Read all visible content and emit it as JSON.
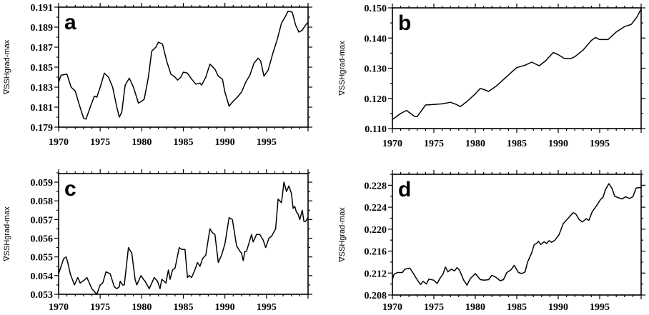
{
  "chart_data": [
    {
      "type": "line",
      "panel_label": "a",
      "ylabel": "∇SSHgrad-max",
      "xlim": [
        1970,
        2000
      ],
      "ylim": [
        0.179,
        0.191
      ],
      "xticks": [
        "1970",
        "1975",
        "1980",
        "1985",
        "1990",
        "1995"
      ],
      "xtick_values": [
        1970,
        1975,
        1980,
        1985,
        1990,
        1995
      ],
      "yticks": [
        "0.179",
        "0.181",
        "0.183",
        "0.185",
        "0.187",
        "0.189",
        "0.191"
      ],
      "ytick_values": [
        0.179,
        0.181,
        0.183,
        0.185,
        0.187,
        0.189,
        0.191
      ],
      "yminor_step": 0.001,
      "grid": false,
      "series": [
        {
          "name": "a",
          "x": [
            1970,
            1970.3,
            1971,
            1971.5,
            1972,
            1972.5,
            1973,
            1973.3,
            1973.8,
            1974.3,
            1974.6,
            1975,
            1975.5,
            1976,
            1976.5,
            1977,
            1977.3,
            1977.6,
            1978,
            1978.5,
            1979,
            1979.6,
            1980,
            1980.3,
            1980.8,
            1981.2,
            1981.7,
            1982,
            1982.5,
            1983,
            1983.5,
            1984,
            1984.3,
            1984.7,
            1985,
            1985.5,
            1986,
            1986.5,
            1987,
            1987.2,
            1987.7,
            1988.2,
            1988.8,
            1989.2,
            1989.7,
            1990,
            1990.5,
            1991,
            1991.5,
            1992,
            1992.5,
            1993,
            1993.5,
            1994,
            1994.3,
            1994.7,
            1995.2,
            1995.7,
            1996.3,
            1996.8,
            1997.3,
            1997.6,
            1998.1,
            1998.5,
            1998.9,
            1999.3,
            1999.7,
            2000
          ],
          "y": [
            0.1835,
            0.1842,
            0.1843,
            0.183,
            0.1826,
            0.1812,
            0.1799,
            0.1798,
            0.181,
            0.1821,
            0.182,
            0.183,
            0.1844,
            0.184,
            0.183,
            0.181,
            0.18,
            0.1805,
            0.1832,
            0.1839,
            0.183,
            0.1814,
            0.1816,
            0.1818,
            0.184,
            0.1866,
            0.187,
            0.1875,
            0.1873,
            0.1856,
            0.1843,
            0.184,
            0.1837,
            0.184,
            0.1845,
            0.1844,
            0.1838,
            0.1833,
            0.1834,
            0.1832,
            0.184,
            0.1853,
            0.1848,
            0.1841,
            0.1838,
            0.1825,
            0.1811,
            0.1816,
            0.182,
            0.1825,
            0.1835,
            0.1842,
            0.1854,
            0.1859,
            0.1856,
            0.1841,
            0.1847,
            0.1862,
            0.1878,
            0.1894,
            0.1901,
            0.1906,
            0.1905,
            0.1892,
            0.1885,
            0.1887,
            0.1892,
            0.1895
          ]
        }
      ]
    },
    {
      "type": "line",
      "panel_label": "b",
      "ylabel": "∇SSHgrad-max",
      "xlim": [
        1970,
        2000
      ],
      "ylim": [
        0.11,
        0.15
      ],
      "xticks": [
        "1970",
        "1975",
        "1980",
        "1985",
        "1990",
        "1995"
      ],
      "xtick_values": [
        1970,
        1975,
        1980,
        1985,
        1990,
        1995
      ],
      "yticks": [
        "0.110",
        "0.120",
        "0.130",
        "0.140",
        "0.150"
      ],
      "ytick_values": [
        0.11,
        0.12,
        0.13,
        0.14,
        0.15
      ],
      "yminor_step": 0.005,
      "grid": false,
      "series": [
        {
          "name": "b",
          "x": [
            1970,
            1971,
            1971.7,
            1972.7,
            1973,
            1974,
            1975,
            1976,
            1977,
            1977.7,
            1978.2,
            1979,
            1980,
            1980.6,
            1981,
            1981.6,
            1982.5,
            1983.5,
            1984.5,
            1985,
            1986,
            1986.8,
            1987.7,
            1988.5,
            1989.4,
            1990,
            1990.7,
            1991.5,
            1992,
            1993,
            1994,
            1994.5,
            1995,
            1996,
            1997,
            1998,
            1998.8,
            1999.5,
            2000
          ],
          "y": [
            0.113,
            0.115,
            0.116,
            0.114,
            0.114,
            0.1178,
            0.118,
            0.1182,
            0.1187,
            0.118,
            0.1173,
            0.119,
            0.1215,
            0.1233,
            0.123,
            0.1223,
            0.124,
            0.1265,
            0.129,
            0.1302,
            0.131,
            0.132,
            0.1308,
            0.1325,
            0.1352,
            0.1345,
            0.1333,
            0.1332,
            0.1338,
            0.136,
            0.1392,
            0.1402,
            0.1395,
            0.1395,
            0.142,
            0.1438,
            0.1445,
            0.147,
            0.1497
          ]
        }
      ]
    },
    {
      "type": "line",
      "panel_label": "c",
      "ylabel": "∇SSHgrad-max",
      "xlim": [
        1970,
        2000
      ],
      "ylim": [
        0.053,
        0.05946
      ],
      "xticks": [
        "1970",
        "1975",
        "1980",
        "1985",
        "1990",
        "1995"
      ],
      "xtick_values": [
        1970,
        1975,
        1980,
        1985,
        1990,
        1995
      ],
      "yticks": [
        "0.053",
        "0.054",
        "0.055",
        "0.056",
        "0.057",
        "0.058",
        "0.059"
      ],
      "ytick_values": [
        0.053,
        0.054,
        0.055,
        0.056,
        0.057,
        0.058,
        0.059
      ],
      "yminor_step": 0.0005,
      "grid": false,
      "series": [
        {
          "name": "c",
          "x": [
            1970,
            1970.6,
            1970.9,
            1971.1,
            1971.4,
            1971.9,
            1972.3,
            1972.6,
            1972.9,
            1973.2,
            1973.4,
            1974,
            1974.6,
            1975,
            1975.3,
            1975.7,
            1976.2,
            1976.7,
            1977,
            1977.3,
            1977.4,
            1977.7,
            1977.9,
            1978.4,
            1978.8,
            1979.2,
            1979.4,
            1979.9,
            1980.2,
            1980.4,
            1980.9,
            1981.3,
            1981.5,
            1981.9,
            1982.2,
            1982.4,
            1982.7,
            1982.9,
            1983.2,
            1983.4,
            1983.7,
            1984,
            1984.5,
            1984.8,
            1985.2,
            1985.5,
            1985.7,
            1986,
            1986.3,
            1986.7,
            1987,
            1987.3,
            1987.7,
            1988.2,
            1988.5,
            1988.8,
            1989.2,
            1989.6,
            1990,
            1990.5,
            1990.9,
            1991.4,
            1991.8,
            1992,
            1992.2,
            1992.4,
            1992.6,
            1993.2,
            1993.4,
            1993.8,
            1994.2,
            1994.6,
            1994.9,
            1995.3,
            1995.6,
            1996.1,
            1996.4,
            1996.8,
            1997.1,
            1997.4,
            1997.7,
            1998,
            1998.2,
            1998.4,
            1998.6,
            1998.8,
            1999,
            1999.3,
            1999.5,
            1999.7,
            2000
          ],
          "y": [
            0.0541,
            0.0549,
            0.055,
            0.0547,
            0.0541,
            0.0535,
            0.0539,
            0.0536,
            0.0537,
            0.0538,
            0.0539,
            0.0533,
            0.053,
            0.0535,
            0.0536,
            0.0542,
            0.0541,
            0.0534,
            0.0533,
            0.0534,
            0.0537,
            0.0535,
            0.0535,
            0.0555,
            0.0552,
            0.0538,
            0.0535,
            0.054,
            0.0538,
            0.0537,
            0.0533,
            0.0537,
            0.0539,
            0.0537,
            0.0533,
            0.0538,
            0.0537,
            0.0536,
            0.0543,
            0.0538,
            0.0543,
            0.0544,
            0.0555,
            0.0554,
            0.0554,
            0.0539,
            0.054,
            0.0539,
            0.0542,
            0.0547,
            0.0545,
            0.0549,
            0.0551,
            0.0565,
            0.0563,
            0.0562,
            0.0547,
            0.0551,
            0.0557,
            0.0571,
            0.057,
            0.0556,
            0.0553,
            0.0552,
            0.0548,
            0.0553,
            0.0553,
            0.0562,
            0.0558,
            0.0562,
            0.0562,
            0.0559,
            0.0555,
            0.056,
            0.0561,
            0.0565,
            0.0581,
            0.0579,
            0.059,
            0.0585,
            0.0588,
            0.0584,
            0.0576,
            0.0577,
            0.0574,
            0.0573,
            0.057,
            0.0575,
            0.0569,
            0.0569,
            0.0571
          ]
        }
      ]
    },
    {
      "type": "line",
      "panel_label": "d",
      "ylabel": "∇SSHgrad-max",
      "xlim": [
        1970,
        2000
      ],
      "ylim": [
        0.208,
        0.23
      ],
      "xticks": [
        "1970",
        "1975",
        "1980",
        "1985",
        "1990",
        "1995"
      ],
      "xtick_values": [
        1970,
        1975,
        1980,
        1985,
        1990,
        1995
      ],
      "yticks": [
        "0.208",
        "0.212",
        "0.216",
        "0.220",
        "0.224",
        "0.228"
      ],
      "ytick_values": [
        0.208,
        0.212,
        0.216,
        0.22,
        0.224,
        0.228
      ],
      "yminor_step": 0.002,
      "grid": false,
      "series": [
        {
          "name": "d",
          "x": [
            1970,
            1970.2,
            1970.6,
            1971.2,
            1971.5,
            1972.1,
            1972.5,
            1972.9,
            1973.4,
            1973.7,
            1974.1,
            1974.4,
            1975,
            1975.4,
            1975.8,
            1976.1,
            1976.4,
            1976.7,
            1977.1,
            1977.5,
            1977.8,
            1978.1,
            1978.6,
            1979,
            1979.4,
            1980,
            1980.6,
            1981.1,
            1981.6,
            1982,
            1982.5,
            1983,
            1983.4,
            1983.8,
            1984.3,
            1984.7,
            1985.2,
            1985.6,
            1986,
            1986.3,
            1986.8,
            1987.1,
            1987.4,
            1987.6,
            1987.9,
            1988.3,
            1988.6,
            1988.9,
            1989.2,
            1989.6,
            1990.1,
            1990.6,
            1991.2,
            1991.8,
            1992.1,
            1992.5,
            1992.9,
            1993.4,
            1993.7,
            1994.1,
            1994.5,
            1995.1,
            1995.4,
            1995.7,
            1996.1,
            1996.5,
            1996.8,
            1997.3,
            1997.7,
            1998.1,
            1998.6,
            1999,
            1999.4,
            2000
          ],
          "y": [
            0.2108,
            0.2118,
            0.2121,
            0.2121,
            0.2127,
            0.2129,
            0.212,
            0.211,
            0.2099,
            0.2105,
            0.21,
            0.2109,
            0.2107,
            0.2101,
            0.2112,
            0.2118,
            0.2131,
            0.2122,
            0.2127,
            0.2124,
            0.213,
            0.2125,
            0.2107,
            0.2098,
            0.211,
            0.2119,
            0.2108,
            0.2107,
            0.2108,
            0.2116,
            0.2112,
            0.2106,
            0.2108,
            0.2121,
            0.2126,
            0.2134,
            0.2121,
            0.2119,
            0.2122,
            0.214,
            0.2157,
            0.2172,
            0.2174,
            0.2178,
            0.2172,
            0.2177,
            0.2174,
            0.2179,
            0.2176,
            0.218,
            0.219,
            0.221,
            0.222,
            0.223,
            0.2228,
            0.2218,
            0.2213,
            0.2219,
            0.2216,
            0.2232,
            0.224,
            0.2254,
            0.2258,
            0.2272,
            0.2283,
            0.2274,
            0.226,
            0.2257,
            0.2255,
            0.2259,
            0.2256,
            0.2259,
            0.2275,
            0.2276
          ]
        }
      ]
    }
  ]
}
